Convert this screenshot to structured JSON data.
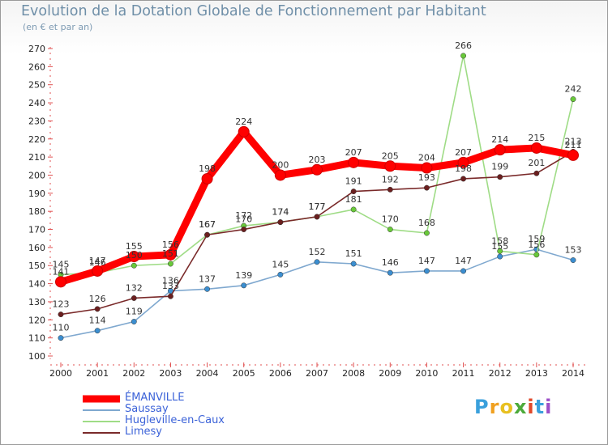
{
  "chart_data": {
    "type": "line",
    "title": "Evolution de la Dotation Globale de Fonctionnement par Habitant",
    "subtitle": "(en € et par an)",
    "x": [
      "2000",
      "2001",
      "2002",
      "2003",
      "2004",
      "2005",
      "2006",
      "2007",
      "2008",
      "2009",
      "2010",
      "2011",
      "2012",
      "2013",
      "2014"
    ],
    "ylim": [
      100,
      270
    ],
    "yticks": [
      100,
      110,
      120,
      130,
      140,
      150,
      160,
      170,
      180,
      190,
      200,
      210,
      220,
      230,
      240,
      250,
      260,
      270
    ],
    "grid": false,
    "legend_position": "bottom-left",
    "series": [
      {
        "name": "ÉMANVILLE",
        "color": "#ff0000",
        "values": [
          141,
          147,
          155,
          156,
          198,
          224,
          200,
          203,
          207,
          205,
          204,
          207,
          214,
          215,
          211
        ]
      },
      {
        "name": "Saussay",
        "color": "#7fa8cf",
        "marker": "#3b8ed0",
        "values": [
          110,
          114,
          119,
          136,
          137,
          139,
          145,
          152,
          151,
          146,
          147,
          147,
          155,
          159,
          153
        ]
      },
      {
        "name": "Hugleville-en-Caux",
        "color": "#9fdc86",
        "marker": "#69c93a",
        "values": [
          145,
          146,
          150,
          151,
          167,
          172,
          174,
          177,
          181,
          170,
          168,
          266,
          158,
          156,
          242
        ]
      },
      {
        "name": "Limesy",
        "color": "#7a2a2a",
        "marker": "#6b1f1f",
        "values": [
          123,
          126,
          132,
          133,
          167,
          170,
          174,
          177,
          191,
          192,
          193,
          198,
          199,
          201,
          213
        ]
      }
    ],
    "data_labels": [
      {
        "series": 0,
        "labels": [
          "141",
          "147",
          "155",
          "156",
          "198",
          "224",
          "200",
          "203",
          "207",
          "205",
          "204",
          "207",
          "214",
          "215",
          "211"
        ]
      },
      {
        "series": 1,
        "labels": [
          "110",
          "114",
          "119",
          "136",
          "137",
          "139",
          "145",
          "152",
          "151",
          "146",
          "147",
          "147",
          "155",
          "159",
          "153"
        ]
      },
      {
        "series": 2,
        "labels": [
          "145",
          "146",
          "150",
          "151",
          "167",
          "172",
          "174",
          "177",
          "181",
          "170",
          "168",
          "266",
          "158",
          "156",
          "242"
        ]
      },
      {
        "series": 3,
        "labels": [
          "123",
          "126",
          "132",
          "133",
          "167",
          "170",
          "174",
          "177",
          "191",
          "192",
          "193",
          "198",
          "199",
          "201",
          "213"
        ]
      }
    ]
  },
  "logo": {
    "text": "Proxiti",
    "letters": [
      "P",
      "r",
      "o",
      "x",
      "i",
      "t",
      "i"
    ],
    "colors": [
      "#3aa0dc",
      "#f0a020",
      "#e8c020",
      "#4caa3a",
      "#e0482a",
      "#3aa0dc",
      "#9c4fc8"
    ]
  }
}
